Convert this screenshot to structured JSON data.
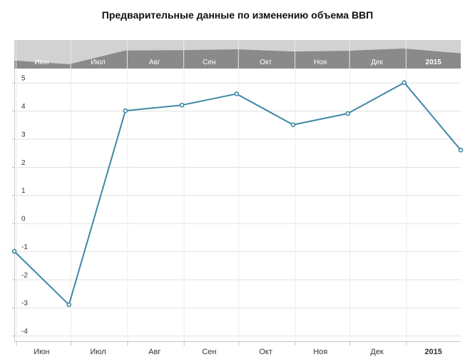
{
  "chart_data": {
    "type": "line",
    "title": "Предварительные данные по изменению объема ВВП",
    "xlabel": "",
    "ylabel": "",
    "x": [
      "2014-05-31",
      "2014-06-30",
      "2014-07-31",
      "2014-08-31",
      "2014-09-30",
      "2014-10-31",
      "2014-11-30",
      "2014-12-31",
      "2015-01-31"
    ],
    "series": [
      {
        "values": [
          -1.0,
          -2.9,
          4.0,
          4.2,
          4.6,
          3.5,
          3.9,
          5.0,
          2.6
        ]
      }
    ],
    "ylim": [
      -4.2,
      5.5
    ],
    "yticks": [
      5,
      4,
      3,
      2,
      1,
      0,
      -1,
      -2,
      -3,
      -4
    ],
    "tick_labels": [
      {
        "label": "Июн",
        "date": "2014-06-15"
      },
      {
        "label": "Июл",
        "date": "2014-07-16"
      },
      {
        "label": "Авг",
        "date": "2014-08-16"
      },
      {
        "label": "Сен",
        "date": "2014-09-15"
      },
      {
        "label": "Окт",
        "date": "2014-10-16"
      },
      {
        "label": "Ноя",
        "date": "2014-11-15"
      },
      {
        "label": "Дек",
        "date": "2014-12-16"
      },
      {
        "label": "2015",
        "date": "2015-01-16",
        "bold": true
      }
    ],
    "gridlines": [
      "2014-06-01",
      "2014-07-01",
      "2014-08-01",
      "2014-09-01",
      "2014-10-01",
      "2014-11-01",
      "2014-12-01",
      "2015-01-01"
    ],
    "grid": true,
    "legend": "none",
    "colors": {
      "line": "#3f88a5",
      "marker_fill": "#ffffff",
      "navigator_band": "#d2d2d2",
      "navigator_area": "#8a8a8a",
      "grid": "#e0e0e0"
    }
  }
}
